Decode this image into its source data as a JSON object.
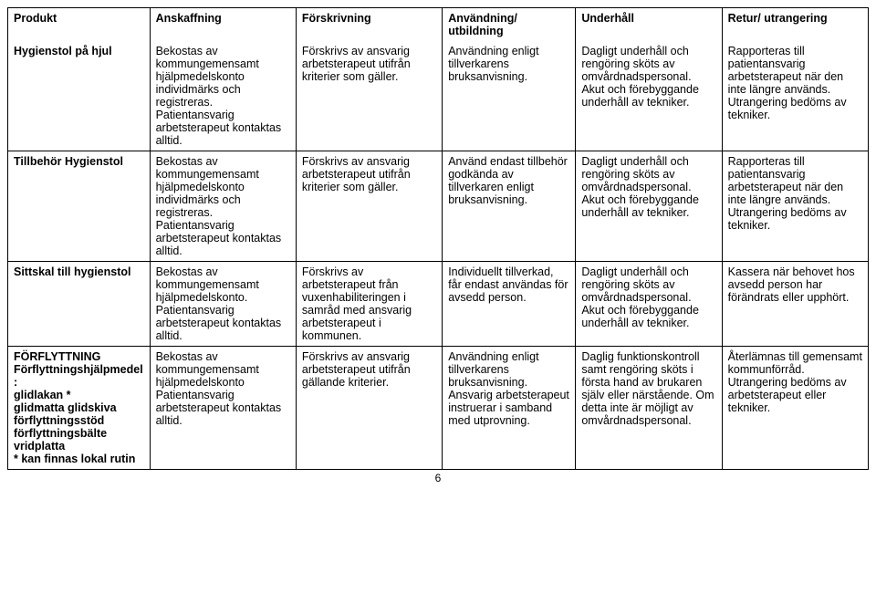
{
  "headers": {
    "product": "Produkt",
    "acquisition": "Anskaffning",
    "prescription": "Förskrivning",
    "usage": "Användning/ utbildning",
    "maintenance": "Underhåll",
    "return": "Retur/ utrangering"
  },
  "rows": [
    {
      "product": "Hygienstol på hjul",
      "productBold": true,
      "acquisition": "Bekostas av kommungemensamt hjälpmedelskonto individmärks och registreras. Patientansvarig arbetsterapeut kontaktas alltid.",
      "prescription": "Förskrivs av ansvarig arbetsterapeut utifrån kriterier som gäller.",
      "usage": "Användning enligt tillverkarens bruksanvisning.",
      "maintenance": "Dagligt underhåll och rengöring sköts av omvårdnadspersonal. Akut och förebyggande underhåll av tekniker.",
      "return": "Rapporteras till patientansvarig arbetsterapeut när den inte längre används. Utrangering bedöms av tekniker."
    },
    {
      "product": "Tillbehör Hygienstol",
      "productBold": true,
      "acquisition": "Bekostas av kommungemensamt hjälpmedelskonto individmärks och registreras. Patientansvarig arbetsterapeut kontaktas alltid.",
      "prescription": "Förskrivs av ansvarig arbetsterapeut utifrån kriterier som gäller.",
      "usage": "Använd endast tillbehör godkända av tillverkaren enligt bruksanvisning.",
      "maintenance": "Dagligt underhåll och rengöring sköts av omvårdnadspersonal. Akut och förebyggande underhåll av tekniker.",
      "return": "Rapporteras till patientansvarig arbetsterapeut när den inte längre används. Utrangering bedöms av tekniker."
    },
    {
      "product": "Sittskal till hygienstol",
      "productBold": true,
      "acquisition": "Bekostas av kommungemensamt hjälpmedelskonto. Patientansvarig arbetsterapeut kontaktas alltid.",
      "prescription": "Förskrivs av arbetsterapeut från vuxenhabiliteringen i samråd med ansvarig arbetsterapeut i kommunen.",
      "usage": "Individuellt tillverkad, får endast användas för avsedd person.",
      "maintenance": "Dagligt underhåll och rengöring sköts av omvårdnadspersonal. Akut och förebyggande underhåll av tekniker.",
      "return": "Kassera när behovet hos avsedd person har förändrats eller upphört."
    }
  ],
  "section": {
    "title": "FÖRFLYTTNING",
    "product_main": "Förflyttningshjälpmedel:",
    "product_lines": "glidlakan *\nglidmatta glidskiva förflyttningsstöd förflyttningsbälte vridplatta\n* kan finnas lokal rutin",
    "acquisition": "Bekostas av kommungemensamt hjälpmedelskonto Patientansvarig arbetsterapeut kontaktas alltid.",
    "prescription": "Förskrivs av ansvarig arbetsterapeut utifrån gällande kriterier.",
    "usage": "Användning enligt tillverkarens bruksanvisning. Ansvarig arbetsterapeut instruerar i samband med utprovning.",
    "maintenance": "Daglig funktionskontroll samt rengöring sköts i första hand av brukaren själv eller närstående. Om detta inte är möjligt av omvårdnadspersonal.",
    "return": "Återlämnas till gemensamt kommunförråd. Utrangering bedöms av arbetsterapeut eller tekniker."
  },
  "pageNumber": "6"
}
